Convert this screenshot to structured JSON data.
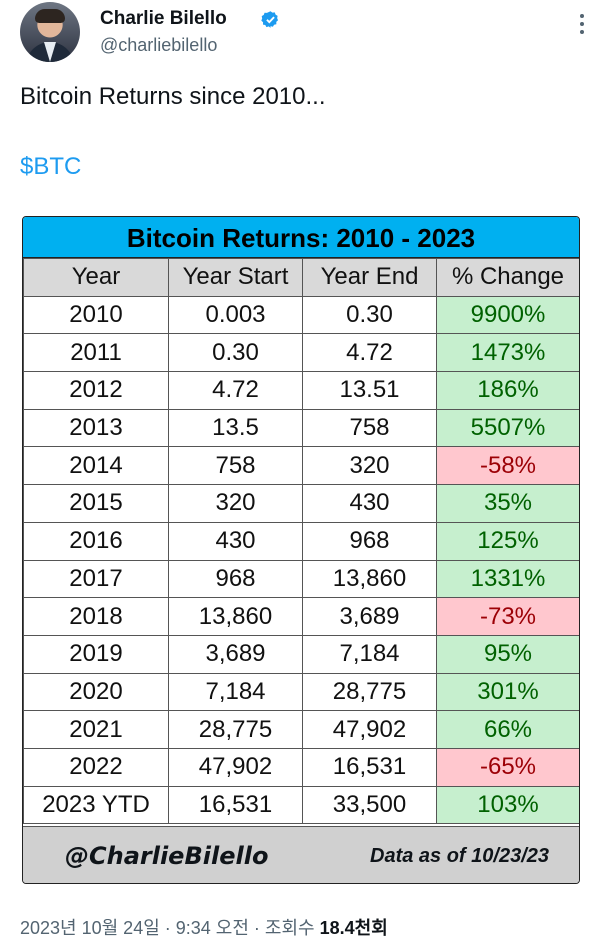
{
  "author": {
    "name": "Charlie Bilello",
    "handle": "@charliebilello"
  },
  "tweet": {
    "text": "Bitcoin Returns since 2010...",
    "cashtag": "$BTC"
  },
  "card": {
    "title": "Bitcoin Returns: 2010 - 2023",
    "headers": [
      "Year",
      "Year Start",
      "Year End",
      "% Change"
    ],
    "rows": [
      {
        "year": "2010",
        "start": "0.003",
        "end": "0.30",
        "change": "9900%",
        "direction": "up"
      },
      {
        "year": "2011",
        "start": "0.30",
        "end": "4.72",
        "change": "1473%",
        "direction": "up"
      },
      {
        "year": "2012",
        "start": "4.72",
        "end": "13.51",
        "change": "186%",
        "direction": "up"
      },
      {
        "year": "2013",
        "start": "13.5",
        "end": "758",
        "change": "5507%",
        "direction": "up"
      },
      {
        "year": "2014",
        "start": "758",
        "end": "320",
        "change": "-58%",
        "direction": "down"
      },
      {
        "year": "2015",
        "start": "320",
        "end": "430",
        "change": "35%",
        "direction": "up"
      },
      {
        "year": "2016",
        "start": "430",
        "end": "968",
        "change": "125%",
        "direction": "up"
      },
      {
        "year": "2017",
        "start": "968",
        "end": "13,860",
        "change": "1331%",
        "direction": "up"
      },
      {
        "year": "2018",
        "start": "13,860",
        "end": "3,689",
        "change": "-73%",
        "direction": "down"
      },
      {
        "year": "2019",
        "start": "3,689",
        "end": "7,184",
        "change": "95%",
        "direction": "up"
      },
      {
        "year": "2020",
        "start": "7,184",
        "end": "28,775",
        "change": "301%",
        "direction": "up"
      },
      {
        "year": "2021",
        "start": "28,775",
        "end": "47,902",
        "change": "66%",
        "direction": "up"
      },
      {
        "year": "2022",
        "start": "47,902",
        "end": "16,531",
        "change": "-65%",
        "direction": "down"
      },
      {
        "year": "2023 YTD",
        "start": "16,531",
        "end": "33,500",
        "change": "103%",
        "direction": "up"
      }
    ],
    "footer_handle": "@CharlieBilello",
    "footer_date": "Data as of 10/23/23"
  },
  "meta": {
    "timestamp": "2023년 10월 24일 · 9:34 오전 · ",
    "views_label": "조회수 ",
    "views_count": "18.4천회"
  },
  "colors": {
    "title_bg": "#00b0f0",
    "positive_bg": "#c6efce",
    "negative_bg": "#ffc7ce",
    "link": "#1d9bf0"
  },
  "icons": {
    "verified": "verified-badge-icon",
    "more": "more-options-icon"
  }
}
